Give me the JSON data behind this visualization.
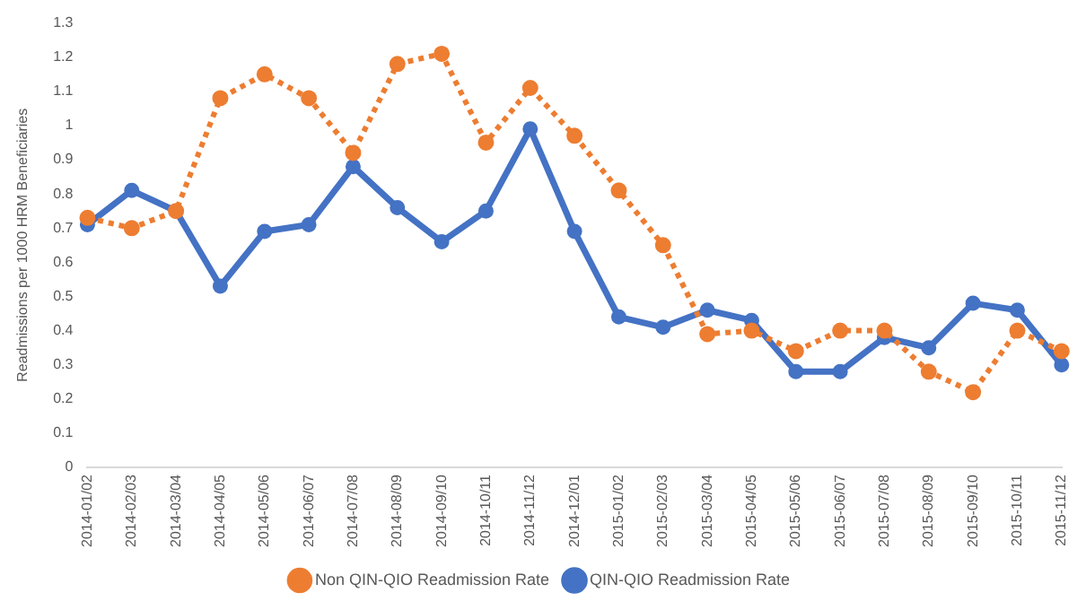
{
  "chart_data": {
    "type": "line",
    "ylabel": "Readmissions per 1000 HRM Beneficiaries",
    "categories": [
      "2014-01/02",
      "2014-02/03",
      "2014-03/04",
      "2014-04/05",
      "2014-05/06",
      "2014-06/07",
      "2014-07/08",
      "2014-08/09",
      "2014-09/10",
      "2014-10/11",
      "2014-11/12",
      "2014-12/01",
      "2015-01/02",
      "2015-02/03",
      "2015-03/04",
      "2015-04/05",
      "2015-05/06",
      "2015-06/07",
      "2015-07/08",
      "2015-08/09",
      "2015-09/10",
      "2015-10/11",
      "2015-11/12"
    ],
    "series": [
      {
        "name": "QIN-QIO Readmission Rate",
        "color": "#4472c4",
        "line_style": "solid",
        "marker": "circle",
        "values": [
          0.71,
          0.81,
          0.75,
          0.53,
          0.69,
          0.71,
          0.88,
          0.76,
          0.66,
          0.75,
          0.99,
          0.69,
          0.44,
          0.41,
          0.46,
          0.43,
          0.28,
          0.28,
          0.38,
          0.35,
          0.48,
          0.46,
          0.3
        ]
      },
      {
        "name": "Non QIN-QIO Readmission Rate",
        "color": "#ed7d31",
        "line_style": "dotted",
        "marker": "circle",
        "values": [
          0.73,
          0.7,
          0.75,
          1.08,
          1.15,
          1.08,
          0.92,
          1.18,
          1.21,
          0.95,
          1.11,
          0.97,
          0.81,
          0.65,
          0.39,
          0.4,
          0.34,
          0.4,
          0.4,
          0.28,
          0.22,
          0.4,
          0.34
        ]
      }
    ],
    "ylim": [
      0,
      1.3
    ],
    "yticks": [
      0,
      0.1,
      0.2,
      0.3,
      0.4,
      0.5,
      0.6,
      0.7,
      0.8,
      0.9,
      1,
      1.1,
      1.2,
      1.3
    ],
    "grid": false,
    "legend": "bottom"
  }
}
